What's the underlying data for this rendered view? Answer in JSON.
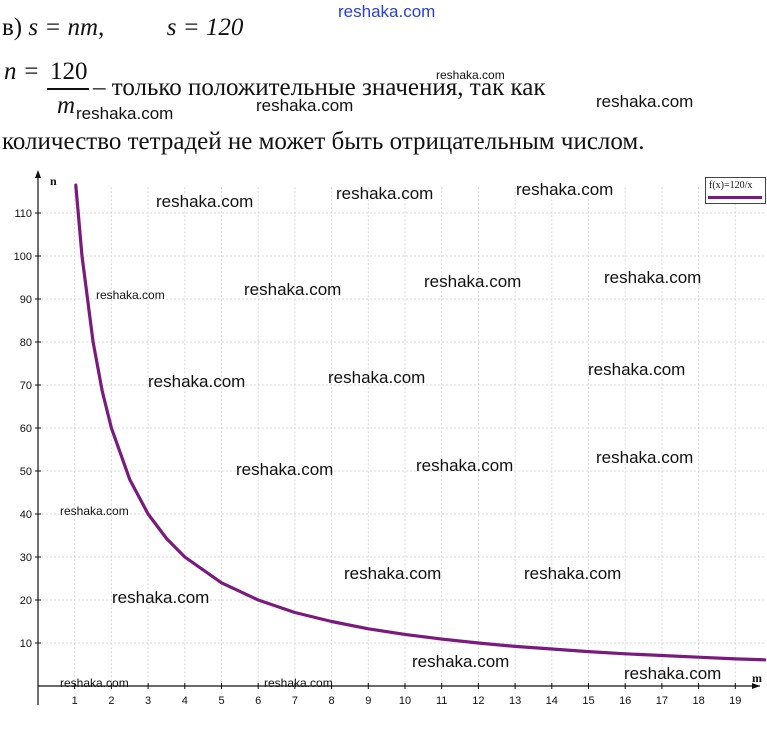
{
  "text": {
    "prefix": "в)",
    "eq1": "s = nm,",
    "eq2": "s = 120",
    "n_label": "n =",
    "frac_num": "120",
    "frac_den": "m",
    "explanation_1": "– только положительные значения, так как",
    "explanation_2": "количество тетрадей не может быть отрицательным числом."
  },
  "watermarks": {
    "text": "reshaka.com",
    "color_top": "#2a3fd6"
  },
  "chart_data": {
    "type": "line",
    "function_label": "f(x)=120/x",
    "xlabel": "m",
    "ylabel": "n",
    "xlim": [
      0,
      19.8
    ],
    "ylim": [
      0,
      116
    ],
    "x_ticks": [
      1,
      2,
      3,
      4,
      5,
      6,
      7,
      8,
      9,
      10,
      11,
      12,
      13,
      14,
      15,
      16,
      17,
      18,
      19
    ],
    "y_ticks": [
      10,
      20,
      30,
      40,
      50,
      60,
      70,
      80,
      90,
      100,
      110
    ],
    "grid": true,
    "legend": "top-right",
    "series": [
      {
        "name": "f(x)=120/x",
        "color": "#7b1a7e",
        "x": [
          1.03,
          1.2,
          1.5,
          1.75,
          2,
          2.5,
          3,
          3.5,
          4,
          5,
          6,
          7,
          8,
          9,
          10,
          11,
          12,
          13,
          14,
          15,
          16,
          17,
          18,
          19,
          19.8
        ],
        "y": [
          116.5,
          100,
          80,
          68.6,
          60,
          48,
          40,
          34.3,
          30,
          24,
          20,
          17.1,
          15,
          13.3,
          12,
          10.9,
          10,
          9.2,
          8.6,
          8,
          7.5,
          7.1,
          6.7,
          6.3,
          6.1
        ]
      }
    ]
  }
}
